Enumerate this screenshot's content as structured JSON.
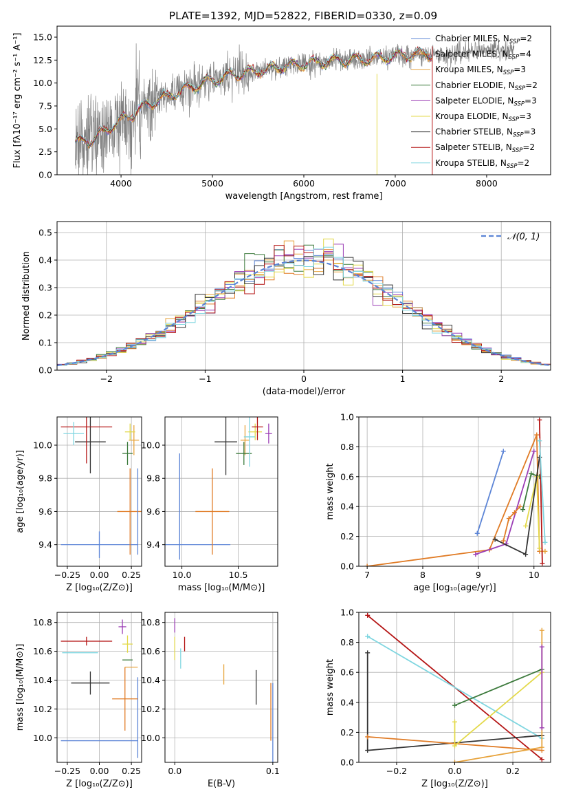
{
  "figure": {
    "title": "PLATE=1392, MJD=52822, FIBERID=0330, z=0.09"
  },
  "colors": {
    "series": [
      "#5b84d6",
      "#e07b25",
      "#e7a33c",
      "#3c7a3c",
      "#9b3db5",
      "#e3d94a",
      "#333333",
      "#b41414",
      "#7fd6e0"
    ],
    "data": "#808080",
    "grid": "#b0b0b0",
    "normal": "#5b84d6"
  },
  "chart_data": [
    {
      "id": "spectrum",
      "type": "line",
      "xlabel": "wavelength [Angstrom, rest frame]",
      "ylabel": "Flux [fλ10⁻¹⁷ erg cm⁻² s⁻¹ A⁻¹]",
      "xlim": [
        3300,
        8700
      ],
      "ylim": [
        0,
        16.2
      ],
      "xticks": [
        "4000",
        "5000",
        "6000",
        "7000",
        "8000"
      ],
      "yticks": [
        "0.0",
        "2.5",
        "5.0",
        "7.5",
        "10.0",
        "12.5",
        "15.0"
      ],
      "legend_position": "upper right",
      "legend": [
        {
          "pre": "Chabrier MILES, N",
          "sub": "SSP",
          "post": "=2"
        },
        {
          "pre": "Salpeter MILES, N",
          "sub": "SSP",
          "post": "=4"
        },
        {
          "pre": "Kroupa MILES, N",
          "sub": "SSP",
          "post": "=3"
        },
        {
          "pre": "Chabrier ELODIE, N",
          "sub": "SSP",
          "post": "=2"
        },
        {
          "pre": "Salpeter ELODIE, N",
          "sub": "SSP",
          "post": "=3"
        },
        {
          "pre": "Kroupa ELODIE, N",
          "sub": "SSP",
          "post": "=3"
        },
        {
          "pre": "Chabrier STELIB, N",
          "sub": "SSP",
          "post": "=3"
        },
        {
          "pre": "Salpeter STELIB, N",
          "sub": "SSP",
          "post": "=2"
        },
        {
          "pre": "Kroupa STELIB, N",
          "sub": "SSP",
          "post": "=2"
        }
      ],
      "continuum": {
        "x": [
          3500,
          3700,
          3900,
          4100,
          4300,
          4500,
          4700,
          4900,
          5100,
          5300,
          5500,
          5700,
          5900,
          6100,
          6300,
          6500,
          6700,
          6900,
          7100,
          7300,
          7500,
          7700,
          7900,
          8100,
          8300
        ],
        "y": [
          3.5,
          3.9,
          5.3,
          6.5,
          7.7,
          8.5,
          9.3,
          10.0,
          10.6,
          11.0,
          11.3,
          11.7,
          12.0,
          12.2,
          12.4,
          12.5,
          12.6,
          12.8,
          13.0,
          13.2,
          13.1,
          13.3,
          13.5,
          13.7,
          13.4
        ]
      },
      "observed_range": [
        3500,
        8300
      ],
      "model_range": [
        3500,
        7400
      ]
    },
    {
      "id": "residuals",
      "type": "histogram",
      "xlabel": "(data-model)/error",
      "ylabel": "Normed distribution",
      "xlim": [
        -2.5,
        2.5
      ],
      "ylim": [
        0,
        0.54
      ],
      "xticks": [
        "−2",
        "−1",
        "0",
        "1",
        "2"
      ],
      "yticks": [
        "0.0",
        "0.1",
        "0.2",
        "0.3",
        "0.4",
        "0.5"
      ],
      "bin_width": 0.1,
      "reference_curve": "N(0,1)",
      "legend": [
        {
          "label": "𝒩(0, 1)",
          "style": "dashed"
        }
      ]
    },
    {
      "id": "age-vs-Z",
      "type": "scatter",
      "xlabel": "Z [log₁₀(Z/Z⊙)]",
      "ylabel": "age  [log₁₀(age/yr)]",
      "xlim": [
        -0.33,
        0.33
      ],
      "ylim": [
        9.27,
        10.17
      ],
      "xticks": [
        "−0.25",
        "0.00",
        "0.25"
      ],
      "yticks": [
        "9.4",
        "9.6",
        "9.8",
        "10.0"
      ],
      "points": [
        {
          "x": 0.0,
          "y": 9.4,
          "xerr": 0.3,
          "yerr": 0.08,
          "color": 0
        },
        {
          "x": 0.0,
          "y": 10.11,
          "xerr": 0.0,
          "yerr": 0.0,
          "color": 0
        },
        {
          "x": 0.24,
          "y": 9.6,
          "xerr": 0.1,
          "yerr": 0.26,
          "color": 1
        },
        {
          "x": 0.27,
          "y": 10.03,
          "xerr": 0.04,
          "yerr": 0.09,
          "color": 2
        },
        {
          "x": 0.22,
          "y": 9.95,
          "xerr": 0.04,
          "yerr": 0.07,
          "color": 3
        },
        {
          "x": 0.24,
          "y": 10.08,
          "xerr": 0.04,
          "yerr": 0.05,
          "color": 5
        },
        {
          "x": -0.07,
          "y": 10.02,
          "xerr": 0.12,
          "yerr": 0.19,
          "color": 6
        },
        {
          "x": -0.1,
          "y": 10.11,
          "xerr": 0.2,
          "yerr": 0.22,
          "color": 7
        },
        {
          "x": -0.2,
          "y": 10.07,
          "xerr": 0.08,
          "yerr": 0.07,
          "color": 8
        },
        {
          "x": 0.3,
          "y": 9.6,
          "xerr": 0.0,
          "yerr": 0.26,
          "color": 0
        }
      ]
    },
    {
      "id": "age-vs-mass",
      "type": "scatter",
      "xlabel": "mass [log₁₀(M/M⊙)]",
      "ylabel": "",
      "xlim": [
        9.85,
        10.85
      ],
      "ylim": [
        9.27,
        10.17
      ],
      "xticks": [
        "10.0",
        "10.5"
      ],
      "yticks": [
        "9.4",
        "9.6",
        "9.8",
        "10.0"
      ],
      "points": [
        {
          "x": 9.98,
          "y": 9.4,
          "xerr": 0.45,
          "yerr": 0.0,
          "color": 0
        },
        {
          "x": 9.98,
          "y": 9.63,
          "xerr": 0.0,
          "yerr": 0.32,
          "color": 0
        },
        {
          "x": 10.27,
          "y": 9.6,
          "xerr": 0.15,
          "yerr": 0.26,
          "color": 1
        },
        {
          "x": 10.56,
          "y": 10.03,
          "xerr": 0.04,
          "yerr": 0.09,
          "color": 2
        },
        {
          "x": 10.55,
          "y": 9.95,
          "xerr": 0.07,
          "yerr": 0.07,
          "color": 3
        },
        {
          "x": 10.77,
          "y": 10.07,
          "xerr": 0.03,
          "yerr": 0.06,
          "color": 4
        },
        {
          "x": 10.65,
          "y": 10.08,
          "xerr": 0.06,
          "yerr": 0.05,
          "color": 5
        },
        {
          "x": 10.39,
          "y": 10.02,
          "xerr": 0.1,
          "yerr": 0.2,
          "color": 6
        },
        {
          "x": 10.67,
          "y": 10.11,
          "xerr": 0.05,
          "yerr": 0.08,
          "color": 7
        },
        {
          "x": 10.6,
          "y": 10.05,
          "xerr": 0.05,
          "yerr": 0.18,
          "color": 8
        }
      ]
    },
    {
      "id": "mass-weight-vs-age",
      "type": "line",
      "xlabel": "age  [log₁₀(age/yr)]",
      "ylabel": "mass weight",
      "xlim": [
        6.85,
        10.3
      ],
      "ylim": [
        0,
        1.0
      ],
      "xticks": [
        "7",
        "8",
        "9",
        "10"
      ],
      "yticks": [
        "0.0",
        "0.2",
        "0.4",
        "0.6",
        "0.8",
        "1.0"
      ],
      "series": [
        {
          "color": 0,
          "x": [
            8.98,
            9.45
          ],
          "y": [
            0.22,
            0.77
          ]
        },
        {
          "color": 1,
          "x": [
            7.0,
            9.2,
            10.05,
            10.1
          ],
          "y": [
            0.0,
            0.11,
            0.88,
            0.1
          ]
        },
        {
          "color": 2,
          "x": [
            10.15,
            10.2
          ],
          "y": [
            0.1,
            0.1
          ]
        },
        {
          "color": 3,
          "x": [
            9.8,
            9.95,
            10.1
          ],
          "y": [
            0.38,
            0.62,
            0.6
          ]
        },
        {
          "color": 4,
          "x": [
            8.95,
            9.5,
            10.0
          ],
          "y": [
            0.08,
            0.15,
            0.77
          ]
        },
        {
          "color": 5,
          "x": [
            9.85,
            10.05,
            10.1
          ],
          "y": [
            0.27,
            0.6,
            0.12
          ]
        },
        {
          "color": 6,
          "x": [
            9.3,
            9.85,
            10.1
          ],
          "y": [
            0.18,
            0.08,
            0.73
          ]
        },
        {
          "color": 7,
          "x": [
            10.1,
            10.15
          ],
          "y": [
            0.98,
            0.02
          ]
        },
        {
          "color": 8,
          "x": [
            10.1,
            10.2
          ],
          "y": [
            0.84,
            0.16
          ]
        },
        {
          "color": 1,
          "x": [
            9.45,
            9.55,
            9.65,
            9.75
          ],
          "y": [
            0.17,
            0.32,
            0.36,
            0.4
          ]
        }
      ]
    },
    {
      "id": "mass-vs-Z",
      "type": "scatter",
      "xlabel": "Z [log₁₀(Z/Z⊙)]",
      "ylabel": "mass [log₁₀(M/M⊙)]",
      "xlim": [
        -0.33,
        0.33
      ],
      "ylim": [
        9.83,
        10.87
      ],
      "xticks": [
        "−0.25",
        "0.00",
        "0.25"
      ],
      "yticks": [
        "10.0",
        "10.2",
        "10.4",
        "10.6",
        "10.8"
      ],
      "points": [
        {
          "x": 0.0,
          "y": 9.98,
          "xerr": 0.3,
          "yerr": 0.0,
          "color": 0
        },
        {
          "x": 0.3,
          "y": 10.14,
          "xerr": 0.0,
          "yerr": 0.28,
          "color": 0
        },
        {
          "x": 0.2,
          "y": 10.27,
          "xerr": 0.1,
          "yerr": 0.22,
          "color": 1
        },
        {
          "x": 0.25,
          "y": 10.49,
          "xerr": 0.05,
          "yerr": 0.0,
          "color": 2
        },
        {
          "x": 0.22,
          "y": 10.54,
          "xerr": 0.04,
          "yerr": 0.0,
          "color": 3
        },
        {
          "x": 0.18,
          "y": 10.77,
          "xerr": 0.03,
          "yerr": 0.05,
          "color": 4
        },
        {
          "x": 0.22,
          "y": 10.65,
          "xerr": 0.04,
          "yerr": 0.06,
          "color": 5
        },
        {
          "x": -0.07,
          "y": 10.38,
          "xerr": 0.15,
          "yerr": 0.08,
          "color": 6
        },
        {
          "x": -0.1,
          "y": 10.67,
          "xerr": 0.2,
          "yerr": 0.03,
          "color": 7
        },
        {
          "x": -0.15,
          "y": 10.59,
          "xerr": 0.14,
          "yerr": 0.0,
          "color": 8
        }
      ]
    },
    {
      "id": "mass-vs-EBV",
      "type": "scatter",
      "xlabel": "E(B-V)",
      "ylabel": "",
      "xlim": [
        -0.01,
        0.105
      ],
      "ylim": [
        9.83,
        10.87
      ],
      "xticks": [
        "0.0",
        "0.1"
      ],
      "yticks": [
        "10.0",
        "10.2",
        "10.4",
        "10.6",
        "10.8"
      ],
      "points": [
        {
          "x": 0.1,
          "y": 10.1,
          "xerr": 0.0,
          "yerr": 0.28,
          "color": 0
        },
        {
          "x": 0.098,
          "y": 10.18,
          "xerr": 0.0,
          "yerr": 0.2,
          "color": 1
        },
        {
          "x": 0.05,
          "y": 10.44,
          "xerr": 0.0,
          "yerr": 0.07,
          "color": 2
        },
        {
          "x": 0.0,
          "y": 10.78,
          "xerr": 0.0,
          "yerr": 0.05,
          "color": 4
        },
        {
          "x": 0.0,
          "y": 10.62,
          "xerr": 0.0,
          "yerr": 0.08,
          "color": 5
        },
        {
          "x": 0.083,
          "y": 10.35,
          "xerr": 0.0,
          "yerr": 0.12,
          "color": 6
        },
        {
          "x": 0.01,
          "y": 10.65,
          "xerr": 0.0,
          "yerr": 0.05,
          "color": 7
        },
        {
          "x": 0.006,
          "y": 10.55,
          "xerr": 0.0,
          "yerr": 0.07,
          "color": 8
        }
      ]
    },
    {
      "id": "mass-weight-vs-Z",
      "type": "line",
      "xlabel": "Z [log₁₀(Z/Z⊙)]",
      "ylabel": "mass weight",
      "xlim": [
        -0.33,
        0.33
      ],
      "ylim": [
        0,
        1.0
      ],
      "xticks": [
        "−0.2",
        "0.0",
        "0.2"
      ],
      "yticks": [
        "0.0",
        "0.2",
        "0.4",
        "0.6",
        "0.8",
        "1.0"
      ],
      "series": [
        {
          "color": 7,
          "x": [
            -0.3,
            0.3
          ],
          "y": [
            0.98,
            0.02
          ]
        },
        {
          "color": 8,
          "x": [
            -0.3,
            0.3
          ],
          "y": [
            0.84,
            0.16
          ]
        },
        {
          "color": 6,
          "x": [
            -0.3,
            -0.3,
            0.3
          ],
          "y": [
            0.73,
            0.08,
            0.18
          ]
        },
        {
          "color": 1,
          "x": [
            -0.3,
            0.3
          ],
          "y": [
            0.17,
            0.08
          ]
        },
        {
          "color": 3,
          "x": [
            0.0,
            0.3
          ],
          "y": [
            0.38,
            0.62
          ]
        },
        {
          "color": 5,
          "x": [
            0.0,
            0.0,
            0.3
          ],
          "y": [
            0.27,
            0.11,
            0.6
          ]
        },
        {
          "color": 2,
          "x": [
            0.0,
            0.3,
            0.3
          ],
          "y": [
            0.0,
            0.1,
            0.88
          ]
        },
        {
          "color": 4,
          "x": [
            0.3,
            0.3
          ],
          "y": [
            0.77,
            0.23
          ]
        }
      ]
    }
  ]
}
